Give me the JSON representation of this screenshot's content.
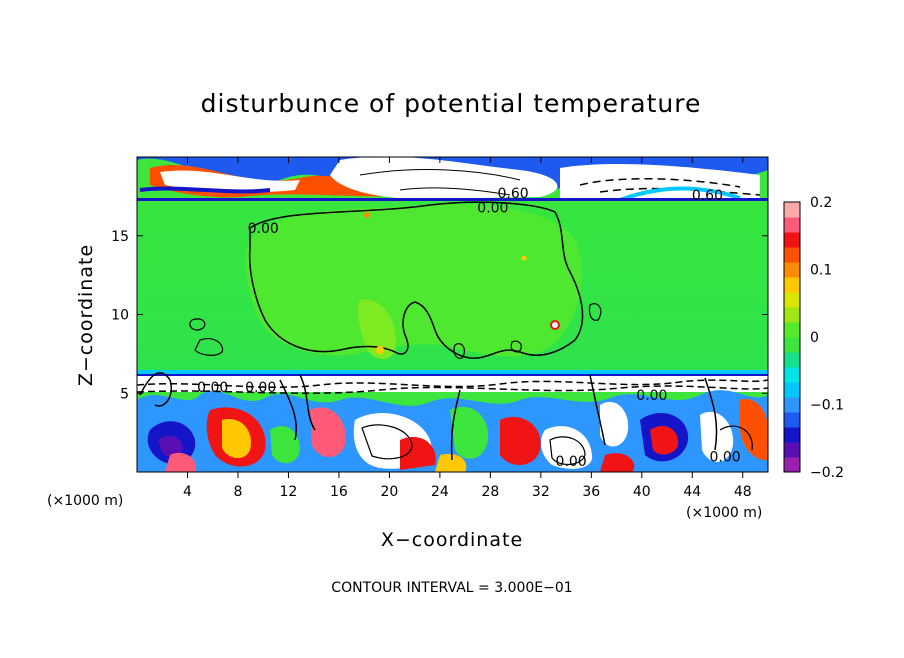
{
  "chart_data": {
    "type": "heatmap",
    "title": "disturbunce of potential temperature",
    "xlabel": "X−coordinate",
    "ylabel": "Z−coordinate",
    "x_unit": "(×1000 m)",
    "y_unit": "(×1000 m)",
    "xlim": [
      0,
      50
    ],
    "ylim": [
      0,
      20
    ],
    "x_ticks": [
      4,
      8,
      12,
      16,
      20,
      24,
      28,
      32,
      36,
      40,
      44,
      48
    ],
    "y_ticks": [
      5,
      10,
      15
    ],
    "footer": "CONTOUR INTERVAL = 3.000E−01",
    "colorbar": {
      "min": -0.2,
      "max": 0.2,
      "ticks": [
        {
          "value": 0.2,
          "label": "0.2"
        },
        {
          "value": 0.1,
          "label": "0.1"
        },
        {
          "value": 0.0,
          "label": "0"
        },
        {
          "value": -0.1,
          "label": "−0.1"
        },
        {
          "value": -0.2,
          "label": "−0.2"
        }
      ],
      "colors": [
        "#9b20b0",
        "#5a0fb4",
        "#1414c8",
        "#1e5af0",
        "#2d96ff",
        "#00c8ff",
        "#00e6e6",
        "#16e08a",
        "#3ce63c",
        "#56ea2a",
        "#a0e614",
        "#d8e600",
        "#ffc800",
        "#ff8c00",
        "#ff5000",
        "#f01414",
        "#ff5a78",
        "#ffaaaa"
      ]
    },
    "contour_labels": [
      {
        "x": 10.0,
        "z": 15.5,
        "text": "0.00"
      },
      {
        "x": 28.2,
        "z": 16.8,
        "text": "0.00"
      },
      {
        "x": 29.8,
        "z": 17.7,
        "text": "0.60"
      },
      {
        "x": 45.2,
        "z": 17.6,
        "text": "0.60"
      },
      {
        "x": 6.0,
        "z": 5.4,
        "text": "0.00"
      },
      {
        "x": 9.8,
        "z": 5.4,
        "text": "0.00"
      },
      {
        "x": 40.8,
        "z": 4.9,
        "text": "0.00"
      },
      {
        "x": 34.4,
        "z": 0.7,
        "text": "0.00"
      },
      {
        "x": 46.6,
        "z": 1.0,
        "text": "0.00"
      }
    ]
  }
}
